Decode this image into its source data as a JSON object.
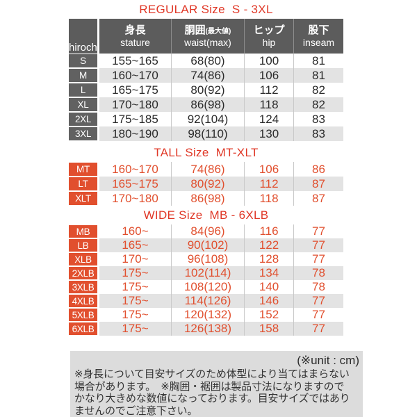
{
  "watermark": "hirochi",
  "columns": [
    {
      "jp": "身長",
      "jp_small": "",
      "en": "stature"
    },
    {
      "jp": "胴囲",
      "jp_small": "(最大値)",
      "en": "waist(max)"
    },
    {
      "jp": "ヒップ",
      "jp_small": "",
      "en": "hip"
    },
    {
      "jp": "股下",
      "jp_small": "",
      "en": "inseam"
    }
  ],
  "chart_data": [
    {
      "type": "table",
      "title": "REGULAR Size  S - 3XL",
      "theme": "gray",
      "show_column_header": true,
      "column_headers_jp": [
        "身長",
        "胴囲(最大値)",
        "ヒップ",
        "股下"
      ],
      "column_headers_en": [
        "stature",
        "waist(max)",
        "hip",
        "inseam"
      ],
      "rows": [
        [
          "S",
          "155~165",
          "68(80)",
          "100",
          "81"
        ],
        [
          "M",
          "160~170",
          "74(86)",
          "106",
          "81"
        ],
        [
          "L",
          "165~175",
          "80(92)",
          "112",
          "82"
        ],
        [
          "XL",
          "170~180",
          "86(98)",
          "118",
          "82"
        ],
        [
          "2XL",
          "175~185",
          "92(104)",
          "124",
          "83"
        ],
        [
          "3XL",
          "180~190",
          "98(110)",
          "130",
          "83"
        ]
      ]
    },
    {
      "type": "table",
      "title": "TALL Size  MT-XLT",
      "theme": "orange",
      "show_column_header": false,
      "rows": [
        [
          "MT",
          "160~170",
          "74(86)",
          "106",
          "86"
        ],
        [
          "LT",
          "165~175",
          "80(92)",
          "112",
          "87"
        ],
        [
          "XLT",
          "170~180",
          "86(98)",
          "118",
          "87"
        ]
      ]
    },
    {
      "type": "table",
      "title": "WIDE Size  MB - 6XLB",
      "theme": "orange",
      "show_column_header": false,
      "rows": [
        [
          "MB",
          "160~",
          "84(96)",
          "116",
          "77"
        ],
        [
          "LB",
          "165~",
          "90(102)",
          "122",
          "77"
        ],
        [
          "XLB",
          "170~",
          "96(108)",
          "128",
          "77"
        ],
        [
          "2XLB",
          "175~",
          "102(114)",
          "134",
          "78"
        ],
        [
          "3XLB",
          "175~",
          "108(120)",
          "140",
          "78"
        ],
        [
          "4XLB",
          "175~",
          "114(126)",
          "146",
          "77"
        ],
        [
          "5XLB",
          "175~",
          "120(132)",
          "152",
          "77"
        ],
        [
          "6XLB",
          "175~",
          "126(138)",
          "158",
          "77"
        ]
      ]
    }
  ],
  "footnote": {
    "unit": "(※unit : cm)",
    "lines": [
      "※身長について目安サイズのため体型により当てはまらない",
      "場合があります。　※胸囲・裾囲は製品寸法になりますので",
      "かなり大きめな数値になっております。目安サイズではあり",
      "ませんのでご注意下さい。"
    ]
  },
  "colors": {
    "title_red": "#e03827",
    "header_gray": "#5c5c5c",
    "size_cell_gray": "#616161",
    "accent_orange": "#e14f2e",
    "stripe_gray": "#e3e3e3",
    "footer_bg": "#dcdcdc",
    "text_dark": "#2b2b2b"
  }
}
